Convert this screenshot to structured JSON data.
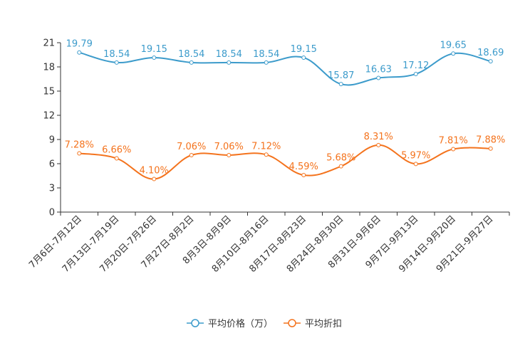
{
  "chart_data": {
    "type": "line",
    "categories": [
      "7月6日-7月12日",
      "7月13日-7月19日",
      "7月20日-7月26日",
      "7月27日-8月2日",
      "8月3日-8月9日",
      "8月10日-8月16日",
      "8月17日-8月23日",
      "8月24日-8月30日",
      "8月31日-9月6日",
      "9月7日-9月13日",
      "9月14日-9月20日",
      "9月21日-9月27日"
    ],
    "ylim": [
      0,
      21
    ],
    "yticks": [
      0,
      3,
      6,
      9,
      12,
      15,
      18,
      21
    ],
    "series": [
      {
        "name": "平均价格（万）",
        "color": "#3c9bcb",
        "values": [
          19.79,
          18.54,
          19.15,
          18.54,
          18.54,
          18.54,
          19.15,
          15.87,
          16.63,
          17.12,
          19.65,
          18.69
        ],
        "labels": [
          "19.79",
          "18.54",
          "19.15",
          "18.54",
          "18.54",
          "18.54",
          "19.15",
          "15.87",
          "16.63",
          "17.12",
          "19.65",
          "18.69"
        ]
      },
      {
        "name": "平均折扣",
        "color": "#f4731d",
        "values": [
          7.28,
          6.66,
          4.1,
          7.06,
          7.06,
          7.12,
          4.59,
          5.68,
          8.31,
          5.97,
          7.81,
          7.88
        ],
        "labels": [
          "7.28%",
          "6.66%",
          "4.10%",
          "7.06%",
          "7.06%",
          "7.12%",
          "4.59%",
          "5.68%",
          "8.31%",
          "5.97%",
          "7.81%",
          "7.88%"
        ]
      }
    ]
  }
}
